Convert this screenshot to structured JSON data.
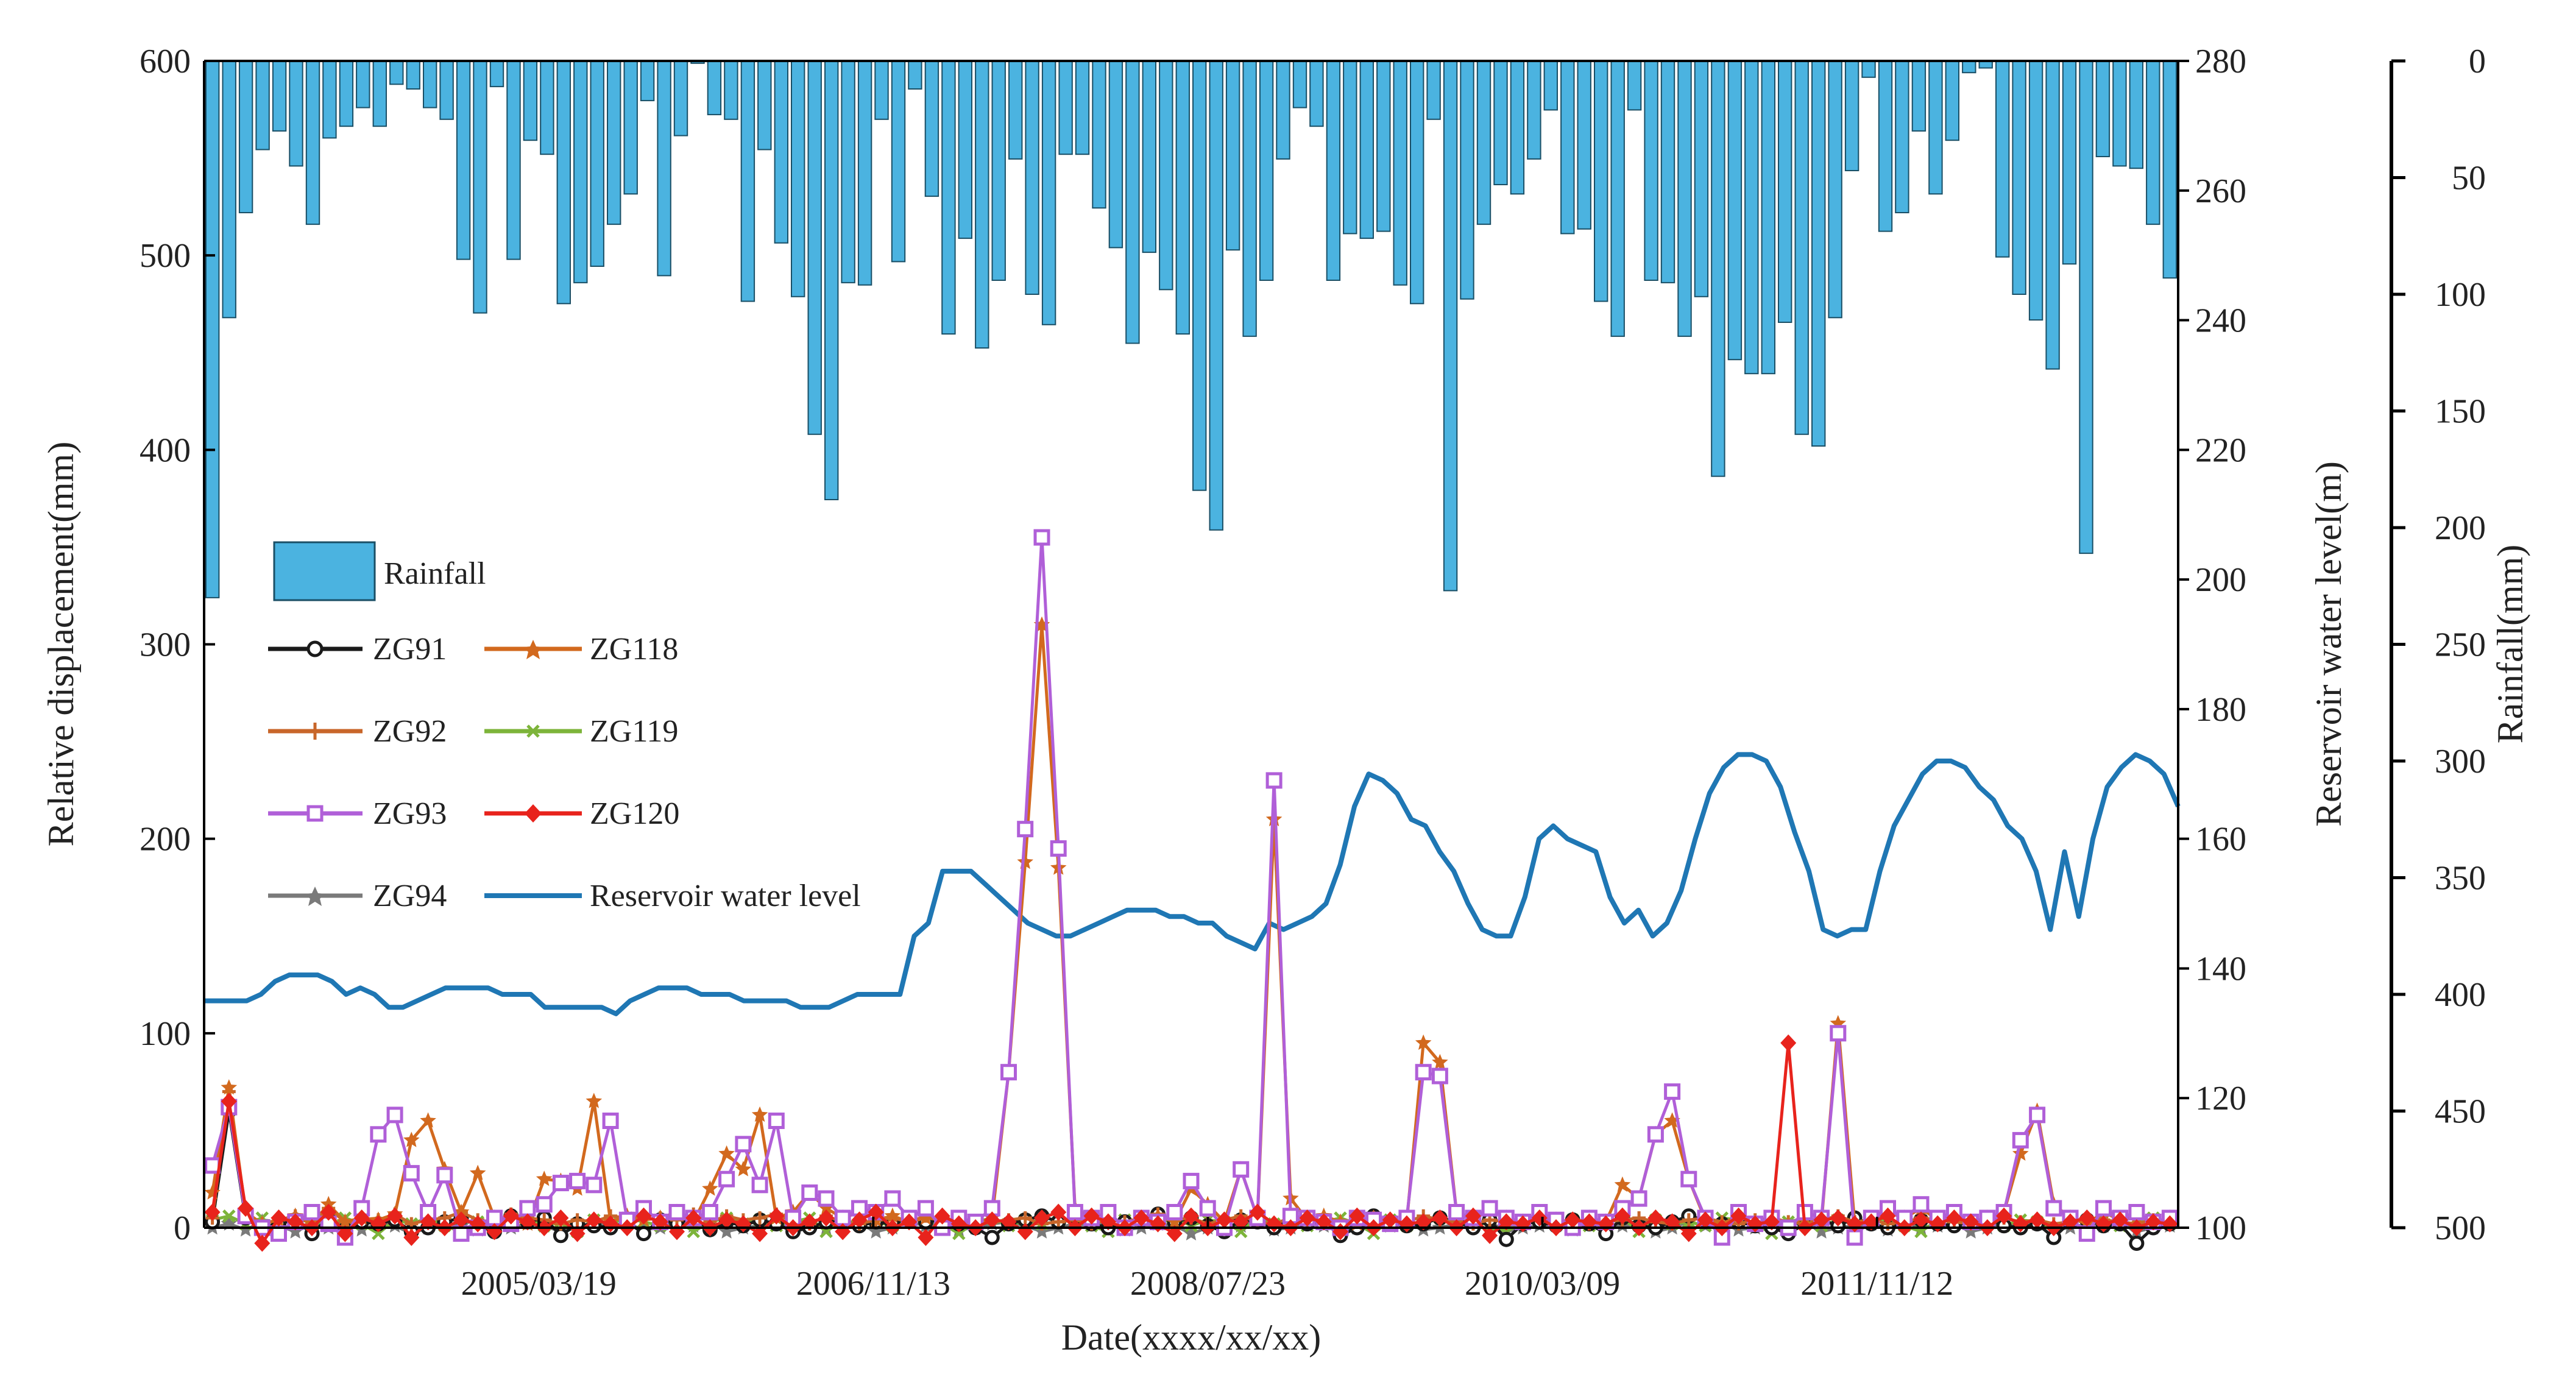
{
  "chart_data": {
    "type": "bar+line",
    "x_axis": {
      "label": "Date(xxxx/xx/xx)",
      "tick_labels": [
        "2005/03/19",
        "2006/11/13",
        "2008/07/23",
        "2010/03/09",
        "2011/11/12"
      ],
      "tick_positions": [
        20,
        40,
        60,
        80,
        100
      ],
      "range": [
        0,
        118
      ]
    },
    "y_left": {
      "label": "Relative displacement(mm)",
      "range": [
        0,
        600
      ],
      "ticks": [
        0,
        100,
        200,
        300,
        400,
        500,
        600
      ]
    },
    "y_right1": {
      "label": "Reservoir water level(m)",
      "range": [
        100,
        280
      ],
      "ticks": [
        100,
        120,
        140,
        160,
        180,
        200,
        220,
        240,
        260,
        280
      ]
    },
    "y_right2": {
      "label": "Rainfall(mm)",
      "range": [
        0,
        500
      ],
      "reversed": true,
      "ticks": [
        0,
        50,
        100,
        150,
        200,
        250,
        300,
        350,
        400,
        450,
        500
      ]
    },
    "legend": {
      "rainfall": "Rainfall",
      "series": [
        "ZG91",
        "ZG118",
        "ZG92",
        "ZG119",
        "ZG93",
        "ZG120",
        "ZG94",
        "Reservoir water level"
      ]
    },
    "rainfall": [
      230,
      110,
      65,
      38,
      30,
      45,
      70,
      33,
      28,
      20,
      28,
      10,
      12,
      20,
      25,
      85,
      108,
      11,
      85,
      34,
      40,
      104,
      95,
      88,
      70,
      57,
      17,
      92,
      32,
      1,
      23,
      25,
      103,
      38,
      78,
      101,
      160,
      188,
      95,
      96,
      25,
      86,
      12,
      58,
      117,
      76,
      123,
      94,
      42,
      100,
      113,
      40,
      40,
      63,
      80,
      121,
      82,
      98,
      117,
      184,
      201,
      81,
      118,
      94,
      42,
      20,
      28,
      94,
      74,
      76,
      73,
      96,
      104,
      25,
      227,
      102,
      70,
      53,
      57,
      42,
      21,
      74,
      72,
      103,
      118,
      21,
      94,
      95,
      118,
      101,
      178,
      128,
      134,
      134,
      112,
      160,
      165,
      110,
      47,
      7,
      73,
      65,
      30,
      57,
      34,
      5,
      3,
      84,
      100,
      111,
      132,
      87,
      211,
      41,
      45,
      46,
      70,
      93
    ],
    "reservoir_level": [
      135,
      135,
      135,
      135,
      136,
      138,
      139,
      139,
      139,
      138,
      136,
      137,
      136,
      134,
      134,
      135,
      136,
      137,
      137,
      137,
      137,
      136,
      136,
      136,
      134,
      134,
      134,
      134,
      134,
      133,
      135,
      136,
      137,
      137,
      137,
      136,
      136,
      136,
      135,
      135,
      135,
      135,
      134,
      134,
      134,
      135,
      136,
      136,
      136,
      136,
      145,
      147,
      155,
      155,
      155,
      153,
      151,
      149,
      147,
      146,
      145,
      145,
      146,
      147,
      148,
      149,
      149,
      149,
      148,
      148,
      147,
      147,
      145,
      144,
      143,
      147,
      146,
      147,
      148,
      150,
      156,
      165,
      170,
      169,
      167,
      163,
      162,
      158,
      155,
      150,
      146,
      145,
      145,
      151,
      160,
      162,
      160,
      159,
      158,
      151,
      147,
      149,
      145,
      147,
      152,
      160,
      167,
      171,
      173,
      173,
      172,
      168,
      161,
      155,
      146,
      145,
      146,
      146,
      155,
      162,
      166,
      170,
      172,
      172,
      171,
      168,
      166,
      162,
      160,
      155,
      146,
      158,
      148,
      160,
      168,
      171,
      173,
      172,
      170,
      165
    ],
    "reservoir_level_note": "Reservoir water level sampled on 140 evenly spaced points across the x-range (0..118); values in metres.",
    "series": [
      {
        "name": "ZG91",
        "color": "#1a1a1a",
        "marker": "circle-open",
        "values": [
          3,
          60,
          5,
          0,
          2,
          4,
          -3,
          5,
          -1,
          3,
          2,
          4,
          -2,
          0,
          3,
          5,
          1,
          -2,
          6,
          3,
          5,
          -4,
          2,
          1,
          0,
          3,
          -3,
          4,
          2,
          5,
          -1,
          3,
          1,
          4,
          2,
          -2,
          0,
          3,
          4,
          1,
          3,
          2,
          5,
          3,
          4,
          2,
          0,
          -5,
          2,
          4,
          6,
          3,
          5,
          2,
          0,
          3,
          4,
          7,
          3,
          5,
          1,
          -2,
          4,
          3,
          0,
          5,
          2,
          3,
          -4,
          0,
          6,
          3,
          1,
          2,
          5,
          3,
          0,
          4,
          -6,
          2,
          3,
          1,
          4,
          2,
          -3,
          5,
          1,
          0,
          3,
          6,
          4,
          2,
          3,
          1,
          0,
          -3,
          2,
          4,
          1,
          5,
          2,
          0,
          3,
          4,
          2,
          1,
          3,
          5,
          1,
          0,
          2,
          -5,
          3,
          4,
          1,
          2,
          -8,
          0,
          2
        ]
      },
      {
        "name": "ZG92",
        "color": "#c8662a",
        "marker": "plus",
        "values": [
          5,
          70,
          8,
          2,
          4,
          6,
          2,
          10,
          3,
          5,
          4,
          7,
          2,
          4,
          5,
          8,
          4,
          2,
          7,
          5,
          4,
          2,
          4,
          3,
          6,
          5,
          8,
          5,
          4,
          7,
          3,
          6,
          4,
          5,
          7,
          3,
          2,
          6,
          3,
          2,
          4,
          5,
          3,
          6,
          4,
          3,
          2,
          3,
          4,
          5,
          2,
          3,
          4,
          2,
          4,
          3,
          5,
          7,
          4,
          5,
          2,
          4,
          6,
          3,
          2,
          5,
          3,
          4,
          2,
          3,
          5,
          4,
          3,
          6,
          4,
          3,
          2,
          4,
          3,
          2,
          5,
          3,
          4,
          2,
          3,
          4,
          5,
          3,
          2,
          4,
          5,
          3,
          2,
          4,
          5,
          3,
          2,
          4,
          6,
          3,
          4,
          2,
          3,
          5,
          4,
          3,
          2,
          4,
          5,
          3,
          4,
          2,
          3,
          5,
          4,
          3,
          2,
          4,
          3
        ]
      },
      {
        "name": "ZG93",
        "color": "#b05fd8",
        "marker": "square-open",
        "values": [
          32,
          62,
          6,
          0,
          -3,
          3,
          8,
          2,
          -5,
          10,
          48,
          58,
          28,
          8,
          27,
          -3,
          0,
          5,
          2,
          10,
          12,
          23,
          24,
          22,
          55,
          4,
          10,
          3,
          8,
          5,
          8,
          25,
          43,
          22,
          55,
          5,
          18,
          15,
          5,
          10,
          8,
          15,
          5,
          10,
          0,
          5,
          3,
          10,
          80,
          205,
          355,
          195,
          8,
          5,
          8,
          0,
          5,
          3,
          8,
          24,
          10,
          0,
          30,
          5,
          230,
          6,
          5,
          3,
          0,
          5,
          4,
          2,
          5,
          80,
          78,
          8,
          5,
          10,
          5,
          3,
          8,
          4,
          0,
          5,
          3,
          10,
          15,
          48,
          70,
          25,
          5,
          -5,
          8,
          2,
          5,
          0,
          8,
          5,
          100,
          -5,
          5,
          10,
          5,
          12,
          5,
          8,
          3,
          5,
          8,
          45,
          58,
          10,
          5,
          -3,
          10,
          5,
          8,
          3,
          5
        ]
      },
      {
        "name": "ZG94",
        "color": "#7a7a7a",
        "marker": "star",
        "values": [
          0,
          2,
          -1,
          3,
          1,
          -2,
          2,
          0,
          3,
          -1,
          2,
          1,
          -3,
          0,
          2,
          1,
          -1,
          3,
          0,
          2,
          1,
          -2,
          0,
          3,
          1,
          2,
          -1,
          0,
          2,
          1,
          3,
          -2,
          0,
          1,
          2,
          -1,
          3,
          0,
          1,
          2,
          -2,
          0,
          3,
          1,
          2,
          -1,
          0,
          2,
          3,
          1,
          -2,
          0,
          2,
          1,
          3,
          -1,
          0,
          2,
          1,
          -3,
          0,
          2,
          1,
          3,
          -1,
          0,
          2,
          1,
          -2,
          0,
          3,
          1,
          2,
          -1,
          0,
          2,
          1,
          3,
          -2,
          0,
          1,
          2,
          -1,
          3,
          0,
          1,
          2,
          -2,
          0,
          3,
          1,
          2,
          -1,
          0,
          2,
          1,
          3,
          -2,
          0,
          1,
          2,
          -1,
          3,
          0,
          1,
          2,
          -2,
          0,
          3,
          1,
          2,
          -1,
          0,
          2,
          1,
          3,
          -2,
          0,
          1
        ]
      },
      {
        "name": "ZG118",
        "color": "#d2691e",
        "marker": "star-filled",
        "values": [
          18,
          72,
          8,
          2,
          4,
          6,
          2,
          12,
          3,
          5,
          4,
          7,
          45,
          55,
          30,
          8,
          28,
          5,
          4,
          2,
          25,
          24,
          20,
          65,
          3,
          6,
          4,
          5,
          8,
          3,
          20,
          38,
          30,
          58,
          5,
          8,
          18,
          10,
          5,
          8,
          4,
          6,
          3,
          5,
          4,
          3,
          2,
          5,
          80,
          188,
          310,
          185,
          10,
          5,
          3,
          0,
          4,
          6,
          3,
          20,
          12,
          3,
          30,
          5,
          210,
          15,
          4,
          6,
          3,
          2,
          5,
          4,
          3,
          95,
          85,
          8,
          4,
          10,
          5,
          3,
          6,
          4,
          2,
          5,
          3,
          22,
          15,
          48,
          55,
          25,
          4,
          2,
          6,
          3,
          4,
          2,
          5,
          3,
          105,
          2,
          4,
          8,
          5,
          10,
          4,
          6,
          3,
          5,
          8,
          38,
          60,
          12,
          5,
          2,
          8,
          4,
          6,
          3,
          5
        ]
      },
      {
        "name": "ZG119",
        "color": "#7db43a",
        "marker": "cross",
        "values": [
          4,
          6,
          2,
          5,
          -2,
          3,
          4,
          1,
          5,
          2,
          -3,
          4,
          2,
          5,
          1,
          -2,
          3,
          4,
          2,
          5,
          1,
          3,
          -2,
          4,
          2,
          5,
          3,
          1,
          4,
          -2,
          3,
          5,
          2,
          4,
          1,
          3,
          5,
          -2,
          4,
          2,
          3,
          1,
          5,
          4,
          2,
          -3,
          3,
          5,
          1,
          4,
          2,
          3,
          5,
          1,
          -2,
          4,
          3,
          2,
          5,
          1,
          4,
          3,
          -2,
          5,
          2,
          4,
          1,
          3,
          5,
          2,
          -3,
          4,
          1,
          3,
          5,
          2,
          4,
          1,
          -2,
          3,
          5,
          2,
          4,
          1,
          3,
          5,
          -2,
          4,
          2,
          3,
          1,
          5,
          4,
          2,
          -3,
          3,
          5,
          1,
          4,
          2,
          3,
          5,
          1,
          -2,
          4,
          3,
          2,
          5,
          1,
          4,
          3,
          -2,
          5,
          2,
          4,
          1,
          3,
          5,
          2
        ]
      },
      {
        "name": "ZG120",
        "color": "#e8231c",
        "marker": "diamond",
        "values": [
          8,
          65,
          10,
          -8,
          5,
          3,
          0,
          8,
          -3,
          5,
          2,
          6,
          -5,
          3,
          0,
          4,
          2,
          -2,
          6,
          3,
          0,
          5,
          -3,
          4,
          2,
          0,
          6,
          3,
          -2,
          5,
          0,
          4,
          2,
          -3,
          6,
          0,
          3,
          5,
          -2,
          4,
          8,
          0,
          3,
          -5,
          6,
          2,
          0,
          4,
          3,
          -2,
          5,
          8,
          0,
          6,
          3,
          0,
          5,
          2,
          -3,
          6,
          0,
          4,
          3,
          8,
          2,
          0,
          5,
          3,
          -2,
          6,
          0,
          4,
          2,
          3,
          5,
          0,
          6,
          -4,
          3,
          2,
          5,
          0,
          4,
          3,
          2,
          6,
          0,
          5,
          3,
          -3,
          4,
          0,
          6,
          2,
          3,
          95,
          0,
          4,
          5,
          2,
          3,
          6,
          0,
          4,
          2,
          5,
          3,
          0,
          6,
          2,
          4,
          0,
          3,
          5,
          2,
          4,
          0,
          3,
          2
        ]
      }
    ]
  },
  "colors": {
    "rainfall_fill": "#4bb3e0",
    "rainfall_edge": "#1a4f66",
    "reservoir": "#1f77b4",
    "axis": "#000000"
  }
}
